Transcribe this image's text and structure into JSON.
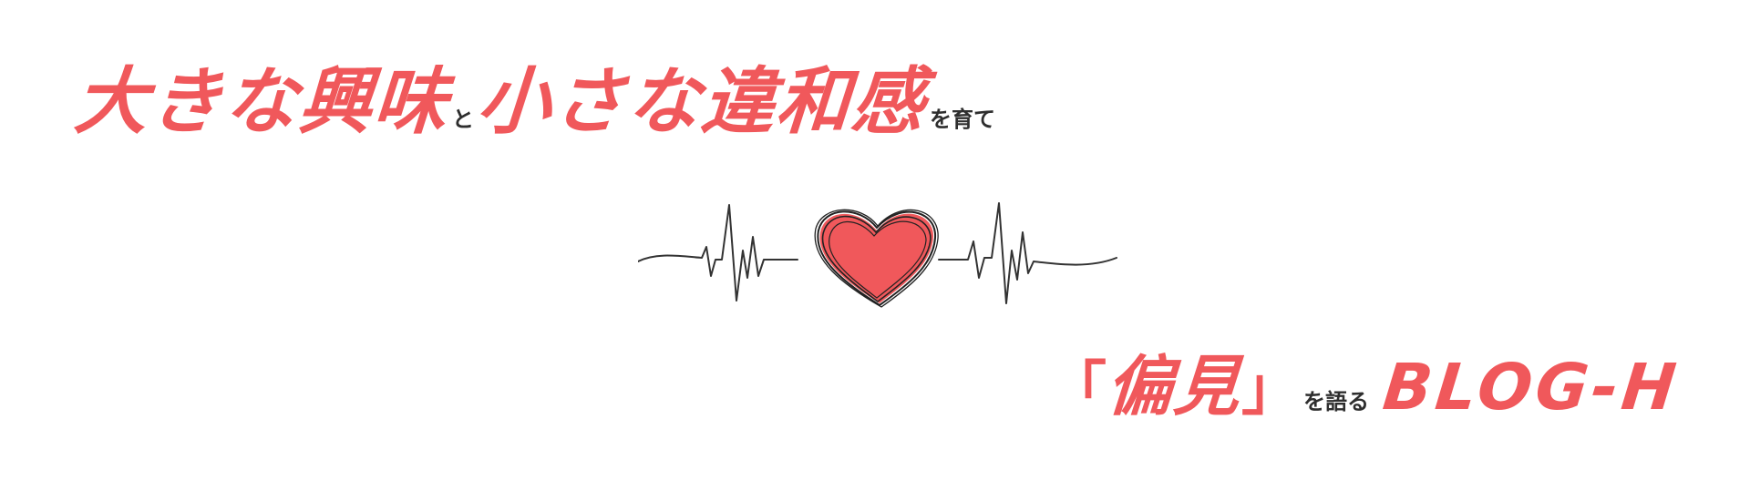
{
  "tagline": {
    "part1": "大きな興味",
    "connector1": "と",
    "part2": "小さな違和感",
    "connector2": "を育て"
  },
  "subtitle": {
    "open_bracket": "「",
    "keyword": "偏見",
    "close_bracket": "」",
    "connector": "を語る",
    "brand": "BLOG-H"
  },
  "colors": {
    "accent": "#f0585b",
    "text_dark": "#2e2e2e",
    "line": "#333333"
  },
  "graphic": {
    "icon": "heart-icon",
    "line": "heartbeat-line"
  }
}
